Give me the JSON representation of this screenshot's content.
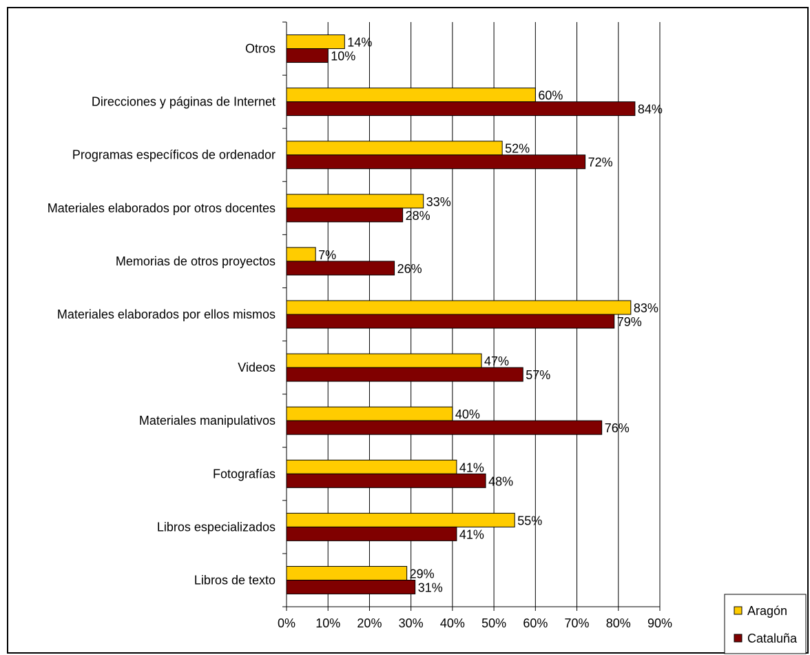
{
  "chart_data": {
    "type": "bar",
    "orientation": "horizontal",
    "categories": [
      "Otros",
      "Direcciones y páginas de Internet",
      "Programas específicos de ordenador",
      "Materiales elaborados por otros docentes",
      "Memorias de otros proyectos",
      "Materiales elaborados por ellos mismos",
      "Videos",
      "Materiales manipulativos",
      "Fotografías",
      "Libros especializados",
      "Libros de texto"
    ],
    "series": [
      {
        "name": "Aragón",
        "color": "#FFCC00",
        "values": [
          14,
          60,
          52,
          33,
          7,
          83,
          47,
          40,
          41,
          55,
          29
        ],
        "labels": [
          "14%",
          "60%",
          "52%",
          "33%",
          "7%",
          "83%",
          "47%",
          "40%",
          "41%",
          "55%",
          "29%"
        ]
      },
      {
        "name": "Cataluña",
        "color": "#800000",
        "values": [
          10,
          84,
          72,
          28,
          26,
          79,
          57,
          76,
          48,
          41,
          31
        ],
        "labels": [
          "10%",
          "84%",
          "72%",
          "28%",
          "26%",
          "79%",
          "57%",
          "76%",
          "48%",
          "41%",
          "31%"
        ]
      }
    ],
    "x_ticks": [
      "0%",
      "10%",
      "20%",
      "30%",
      "40%",
      "50%",
      "60%",
      "70%",
      "80%",
      "90%"
    ],
    "xlim": [
      0,
      90
    ],
    "grid": "vertical",
    "legend_position": "bottom-right"
  }
}
